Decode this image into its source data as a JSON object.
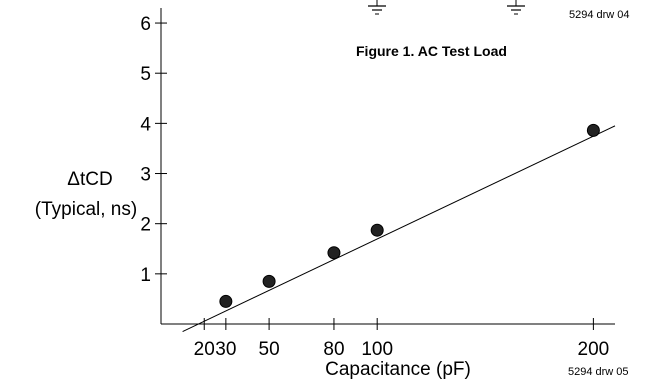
{
  "figure_caption": "Figure 1.  AC Test Load",
  "drawing_ref_top": "5294 drw 04",
  "drawing_ref_bottom": "5294 drw 05",
  "chart_data": {
    "type": "scatter",
    "xlabel": "Capacitance (pF)",
    "ylabel_line1": "ΔtCD",
    "ylabel_line2": "(Typical, ns)",
    "x_ticks": [
      20,
      30,
      50,
      80,
      100,
      200
    ],
    "y_ticks": [
      1,
      2,
      3,
      4,
      5,
      6
    ],
    "xlim": [
      0,
      210
    ],
    "ylim": [
      0,
      6.3
    ],
    "grid": false,
    "points": [
      {
        "x": 30,
        "y": 0.45
      },
      {
        "x": 50,
        "y": 0.85
      },
      {
        "x": 80,
        "y": 1.42
      },
      {
        "x": 100,
        "y": 1.87
      },
      {
        "x": 200,
        "y": 3.86
      }
    ],
    "fit_line": {
      "x": [
        10,
        210
      ],
      "y": [
        -0.15,
        3.95
      ]
    },
    "colors": {
      "axis": "#000000",
      "marker_fill": "#222222",
      "marker_stroke": "#000000"
    }
  }
}
